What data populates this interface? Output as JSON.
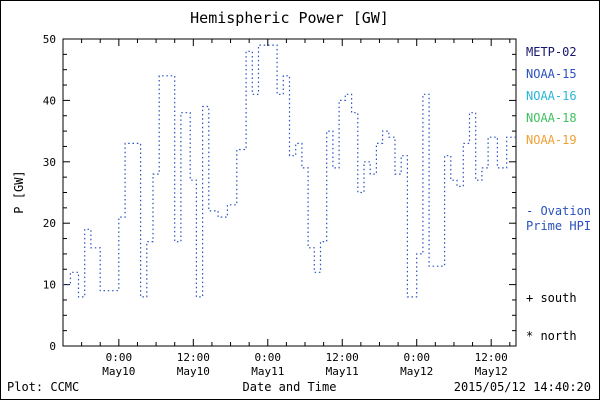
{
  "legend": {
    "items": [
      {
        "label": "METP-02",
        "color": "#15156b"
      },
      {
        "label": "NOAA-15",
        "color": "#2a52be"
      },
      {
        "label": "NOAA-16",
        "color": "#29b6d8"
      },
      {
        "label": "NOAA-18",
        "color": "#3fbf5f"
      },
      {
        "label": "NOAA-19",
        "color": "#efa033"
      }
    ],
    "ovation_line1": "- Ovation",
    "ovation_line2": "Prime HPI",
    "ovation_color": "#2a52be",
    "south_label": "+ south",
    "north_label": "* north"
  },
  "footer": {
    "credit": "Plot: CCMC",
    "timestamp": "2015/05/12 14:40:20"
  },
  "chart_data": {
    "type": "line",
    "title": "Hemispheric Power [GW]",
    "xlabel": "Date and Time",
    "ylabel": "P [GW]",
    "ylim": [
      0,
      50
    ],
    "yticks": [
      0,
      10,
      20,
      30,
      40,
      50
    ],
    "xlim_hours": [
      0,
      73
    ],
    "x_unit": "hours (axis labeled by date/time ticks below)",
    "grid": false,
    "legend_position": "right",
    "line_color": "#2a52be",
    "line_style": "dotted-step",
    "xticks": [
      {
        "hour": 9,
        "time": "0:00",
        "date": "May10"
      },
      {
        "hour": 21,
        "time": "12:00",
        "date": "May10"
      },
      {
        "hour": 33,
        "time": "0:00",
        "date": "May11"
      },
      {
        "hour": 45,
        "time": "12:00",
        "date": "May11"
      },
      {
        "hour": 57,
        "time": "0:00",
        "date": "May12"
      },
      {
        "hour": 69,
        "time": "12:00",
        "date": "May12"
      }
    ],
    "series": [
      {
        "name": "Ovation Prime HPI",
        "x": [
          0,
          1.2,
          2.5,
          3.5,
          4.5,
          6,
          7.5,
          9,
          10,
          11.5,
          12.5,
          13.5,
          14.5,
          15.5,
          17,
          18,
          19,
          20.5,
          21.5,
          22.5,
          23.5,
          25,
          26.5,
          28,
          29.5,
          30.5,
          31.5,
          33,
          34.5,
          35.5,
          36.5,
          37.5,
          38.5,
          39.5,
          40.5,
          41.5,
          42.5,
          43.5,
          44.5,
          45.5,
          46.5,
          47.5,
          48.5,
          49.5,
          50.5,
          51.5,
          52.5,
          53.5,
          54.5,
          55.5,
          57,
          58,
          59,
          60,
          61.5,
          62.5,
          63.5,
          64.5,
          65.5,
          66.5,
          67.5,
          68.5,
          70,
          71.5,
          73
        ],
        "y": [
          10,
          12,
          8,
          19,
          16,
          9,
          9,
          21,
          33,
          33,
          8,
          17,
          28,
          44,
          44,
          17,
          38,
          27,
          8,
          39,
          22,
          21,
          23,
          32,
          48,
          41,
          49,
          49,
          41,
          44,
          31,
          33,
          29,
          16,
          12,
          17,
          35,
          29,
          40,
          41,
          38,
          25,
          30,
          28,
          33,
          35,
          34,
          28,
          31,
          8,
          15,
          41,
          13,
          13,
          31,
          27,
          26,
          33,
          38,
          27,
          29,
          34,
          29,
          34,
          34
        ]
      }
    ]
  }
}
